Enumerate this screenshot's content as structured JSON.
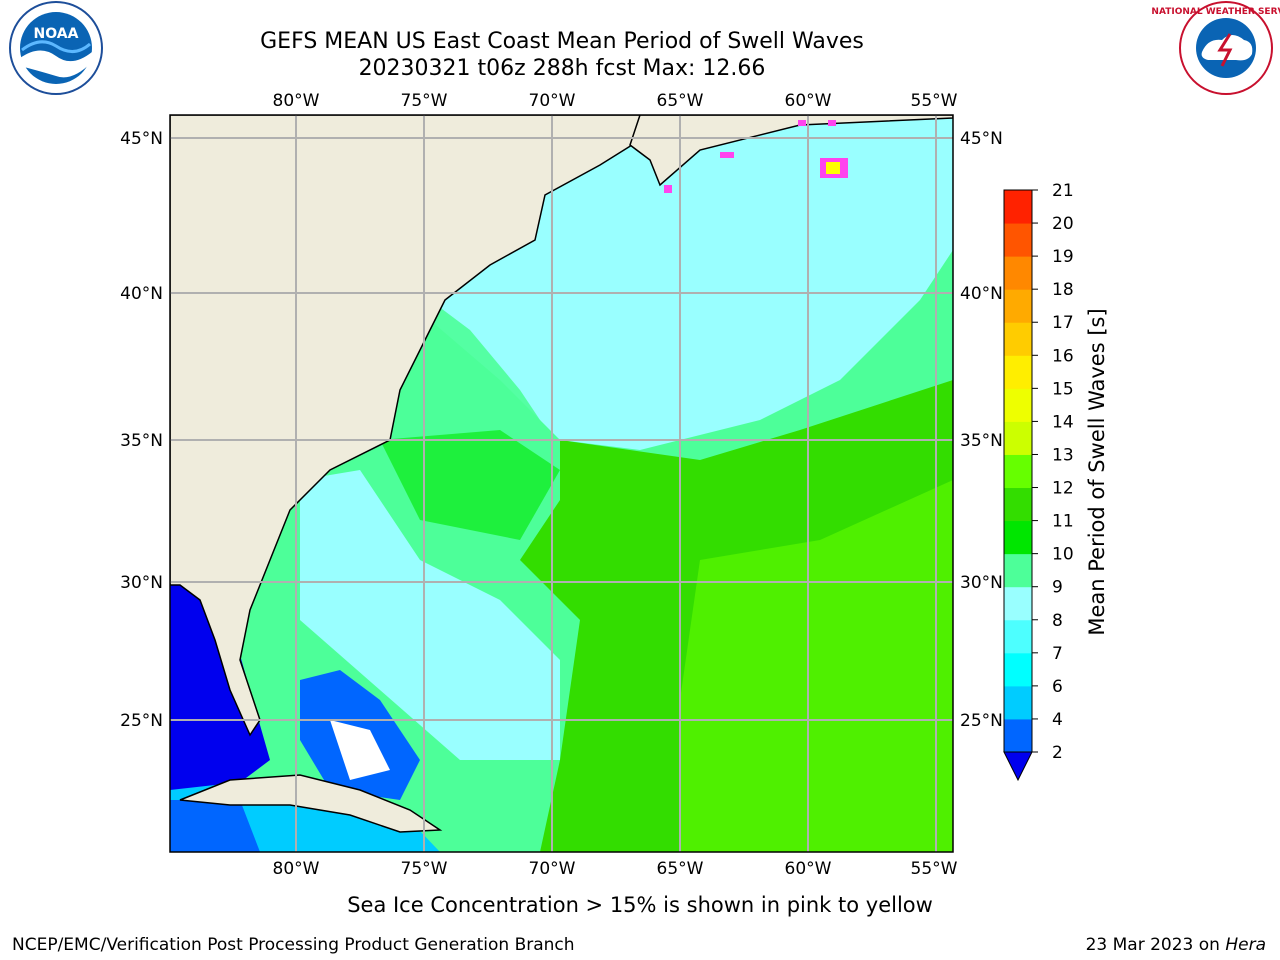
{
  "header": {
    "title_line1": "GEFS MEAN US East Coast Mean Period of Swell Waves",
    "title_line2": "20230321 t06z 288h fcst   Max: 12.66"
  },
  "logos": {
    "noaa_text": "NOAA",
    "nws_text": "NATIONAL WEATHER SERVICE"
  },
  "map": {
    "lon_labels": [
      "80°W",
      "75°W",
      "70°W",
      "65°W",
      "60°W",
      "55°W"
    ],
    "lat_labels": [
      "45°N",
      "40°N",
      "35°N",
      "30°N",
      "25°N"
    ],
    "land_color": "#efecdc",
    "grid_color": "#b0b0b0"
  },
  "colorbar": {
    "label": "Mean Period of Swell Waves [s]",
    "ticks": [
      "2",
      "4",
      "6",
      "7",
      "8",
      "9",
      "10",
      "11",
      "12",
      "13",
      "14",
      "15",
      "16",
      "17",
      "18",
      "19",
      "20",
      "21"
    ],
    "colors": [
      "#0000ee",
      "#0066ff",
      "#00ccff",
      "#00ffff",
      "#4dffff",
      "#99ffff",
      "#4dff99",
      "#00e600",
      "#33dd00",
      "#66ff00",
      "#ccff00",
      "#eeff00",
      "#ffee00",
      "#ffcc00",
      "#ffaa00",
      "#ff8800",
      "#ff5500",
      "#ff2200",
      "#ff0000"
    ]
  },
  "footer": {
    "note": "Sea Ice Concentration > 15% is shown in pink to yellow",
    "credit": "NCEP/EMC/Verification Post Processing Product Generation Branch",
    "date": "23 Mar 2023 on ",
    "machine": "Hera"
  }
}
